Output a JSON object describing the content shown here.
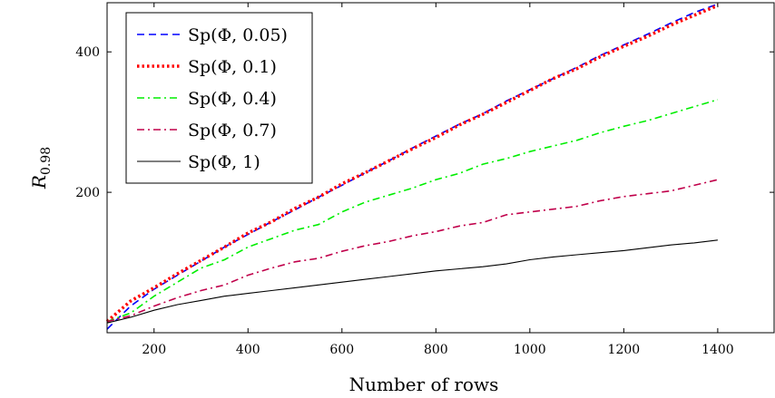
{
  "chart_data": {
    "type": "line",
    "xlabel": "Number of rows",
    "ylabel": "R",
    "ylabel_subscript": "0.98",
    "xlim": [
      100,
      1520
    ],
    "ylim": [
      0,
      470
    ],
    "xticks": [
      200,
      400,
      600,
      800,
      1000,
      1200,
      1400
    ],
    "yticks": [
      200,
      400
    ],
    "grid": false,
    "legend_position": "top-left",
    "series": [
      {
        "name": "Sp(Φ, 0.05)",
        "color": "#0000ff",
        "style": "dashed",
        "x": [
          100,
          150,
          200,
          250,
          300,
          350,
          400,
          450,
          500,
          550,
          600,
          650,
          700,
          750,
          800,
          850,
          900,
          950,
          1000,
          1050,
          1100,
          1150,
          1200,
          1250,
          1300,
          1350,
          1400
        ],
        "y": [
          5,
          38,
          62,
          82,
          102,
          122,
          140,
          158,
          175,
          193,
          210,
          228,
          245,
          263,
          280,
          297,
          312,
          330,
          346,
          362,
          378,
          395,
          410,
          425,
          441,
          456,
          468
        ]
      },
      {
        "name": "Sp(Φ, 0.1)",
        "color": "#ff0000",
        "style": "dotted",
        "x": [
          100,
          150,
          200,
          250,
          300,
          350,
          400,
          450,
          500,
          550,
          600,
          650,
          700,
          750,
          800,
          850,
          900,
          950,
          1000,
          1050,
          1100,
          1150,
          1200,
          1250,
          1300,
          1350,
          1400
        ],
        "y": [
          16,
          45,
          64,
          84,
          103,
          122,
          142,
          158,
          177,
          193,
          212,
          228,
          245,
          262,
          278,
          296,
          311,
          328,
          345,
          362,
          376,
          393,
          408,
          422,
          438,
          452,
          466
        ]
      },
      {
        "name": "Sp(Φ, 0.4)",
        "color": "#00ee00",
        "style": "dashdotted",
        "x": [
          100,
          150,
          200,
          250,
          300,
          350,
          400,
          450,
          500,
          550,
          600,
          650,
          700,
          750,
          800,
          850,
          900,
          950,
          1000,
          1050,
          1100,
          1150,
          1200,
          1250,
          1300,
          1350,
          1400
        ],
        "y": [
          16,
          28,
          52,
          72,
          92,
          104,
          122,
          134,
          146,
          154,
          172,
          186,
          196,
          206,
          218,
          227,
          240,
          248,
          258,
          266,
          274,
          285,
          294,
          302,
          312,
          322,
          332
        ]
      },
      {
        "name": "Sp(Φ, 0.7)",
        "color": "#c0004a",
        "style": "dashdotted",
        "x": [
          100,
          150,
          200,
          250,
          300,
          350,
          400,
          450,
          500,
          550,
          600,
          650,
          700,
          750,
          800,
          850,
          900,
          950,
          1000,
          1050,
          1100,
          1150,
          1200,
          1250,
          1300,
          1350,
          1400
        ],
        "y": [
          16,
          24,
          38,
          50,
          60,
          68,
          82,
          92,
          101,
          106,
          116,
          124,
          130,
          138,
          144,
          152,
          157,
          168,
          172,
          176,
          180,
          188,
          194,
          198,
          202,
          210,
          218
        ]
      },
      {
        "name": "Sp(Φ, 1)",
        "color": "#000000",
        "style": "solid",
        "x": [
          100,
          150,
          200,
          250,
          300,
          350,
          400,
          450,
          500,
          550,
          600,
          650,
          700,
          750,
          800,
          850,
          900,
          950,
          1000,
          1050,
          1100,
          1150,
          1200,
          1250,
          1300,
          1350,
          1400
        ],
        "y": [
          14,
          22,
          32,
          40,
          46,
          52,
          56,
          60,
          64,
          68,
          72,
          76,
          80,
          84,
          88,
          91,
          94,
          98,
          104,
          108,
          111,
          114,
          117,
          121,
          125,
          128,
          132
        ]
      }
    ]
  }
}
